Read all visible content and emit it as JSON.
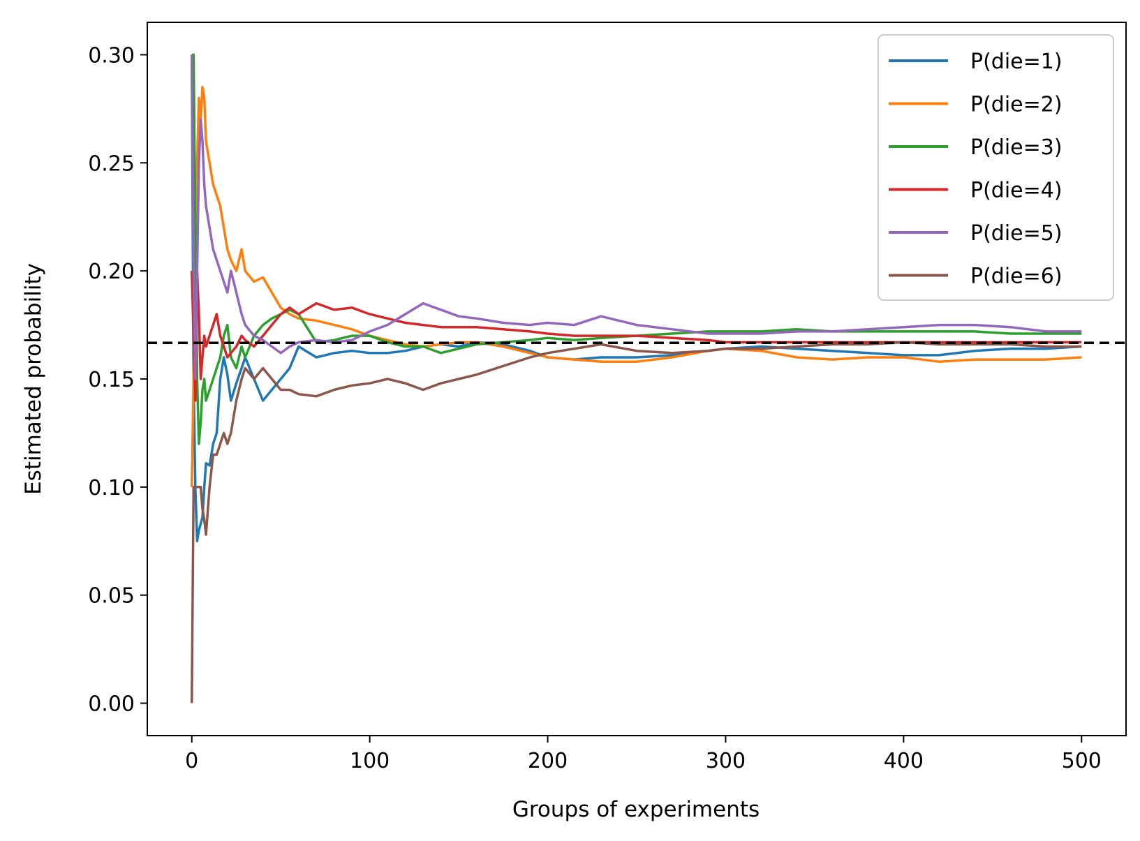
{
  "chart_data": {
    "type": "line",
    "title": "",
    "xlabel": "Groups of experiments",
    "ylabel": "Estimated probability",
    "xlim": [
      -25,
      525
    ],
    "ylim": [
      -0.015,
      0.315
    ],
    "xticks": [
      0,
      100,
      200,
      300,
      400,
      500
    ],
    "xtick_labels": [
      "0",
      "100",
      "200",
      "300",
      "400",
      "500"
    ],
    "yticks": [
      0.0,
      0.05,
      0.1,
      0.15,
      0.2,
      0.25,
      0.3
    ],
    "ytick_labels": [
      "0.00",
      "0.05",
      "0.10",
      "0.15",
      "0.20",
      "0.25",
      "0.30"
    ],
    "grid": false,
    "legend_position": "top-right",
    "reference_line": {
      "y": 0.1667,
      "style": "dashed",
      "color": "#000000"
    },
    "x": [
      0,
      1,
      2,
      3,
      4,
      5,
      6,
      7,
      8,
      10,
      12,
      14,
      16,
      18,
      20,
      22,
      25,
      28,
      30,
      35,
      40,
      45,
      50,
      55,
      60,
      70,
      80,
      90,
      100,
      110,
      120,
      130,
      140,
      150,
      160,
      175,
      190,
      200,
      215,
      230,
      250,
      270,
      290,
      300,
      320,
      340,
      360,
      380,
      400,
      420,
      440,
      460,
      480,
      500
    ],
    "series": [
      {
        "name": "P(die=1)",
        "color": "#1f77b4",
        "values": [
          0.3,
          0.15,
          0.1,
          0.075,
          0.08,
          0.083,
          0.086,
          0.1,
          0.111,
          0.11,
          0.12,
          0.125,
          0.15,
          0.16,
          0.152,
          0.14,
          0.148,
          0.155,
          0.16,
          0.15,
          0.14,
          0.145,
          0.15,
          0.155,
          0.165,
          0.16,
          0.162,
          0.163,
          0.162,
          0.162,
          0.163,
          0.165,
          0.166,
          0.165,
          0.167,
          0.166,
          0.163,
          0.16,
          0.159,
          0.16,
          0.16,
          0.161,
          0.163,
          0.164,
          0.165,
          0.164,
          0.163,
          0.162,
          0.161,
          0.161,
          0.163,
          0.164,
          0.164,
          0.165
        ]
      },
      {
        "name": "P(die=2)",
        "color": "#ff7f0e",
        "values": [
          0.1,
          0.15,
          0.2,
          0.25,
          0.28,
          0.27,
          0.285,
          0.28,
          0.26,
          0.25,
          0.24,
          0.235,
          0.23,
          0.22,
          0.21,
          0.205,
          0.2,
          0.21,
          0.2,
          0.195,
          0.197,
          0.19,
          0.183,
          0.18,
          0.178,
          0.177,
          0.175,
          0.173,
          0.17,
          0.168,
          0.166,
          0.165,
          0.166,
          0.167,
          0.167,
          0.165,
          0.162,
          0.16,
          0.159,
          0.158,
          0.158,
          0.16,
          0.163,
          0.164,
          0.163,
          0.16,
          0.159,
          0.16,
          0.16,
          0.158,
          0.159,
          0.159,
          0.159,
          0.16
        ]
      },
      {
        "name": "P(die=3)",
        "color": "#2ca02c",
        "values": [
          0.3,
          0.3,
          0.22,
          0.15,
          0.12,
          0.13,
          0.145,
          0.15,
          0.14,
          0.145,
          0.15,
          0.155,
          0.16,
          0.17,
          0.175,
          0.16,
          0.155,
          0.165,
          0.16,
          0.17,
          0.175,
          0.178,
          0.18,
          0.182,
          0.18,
          0.167,
          0.168,
          0.17,
          0.17,
          0.167,
          0.165,
          0.165,
          0.162,
          0.164,
          0.166,
          0.167,
          0.168,
          0.169,
          0.168,
          0.169,
          0.17,
          0.171,
          0.172,
          0.172,
          0.172,
          0.173,
          0.172,
          0.172,
          0.172,
          0.172,
          0.172,
          0.171,
          0.171,
          0.171
        ]
      },
      {
        "name": "P(die=4)",
        "color": "#d62728",
        "values": [
          0.2,
          0.17,
          0.14,
          0.2,
          0.18,
          0.15,
          0.16,
          0.17,
          0.165,
          0.17,
          0.175,
          0.18,
          0.17,
          0.165,
          0.16,
          0.162,
          0.165,
          0.17,
          0.168,
          0.165,
          0.17,
          0.175,
          0.18,
          0.183,
          0.18,
          0.185,
          0.182,
          0.183,
          0.18,
          0.178,
          0.176,
          0.175,
          0.174,
          0.174,
          0.174,
          0.173,
          0.172,
          0.171,
          0.17,
          0.17,
          0.17,
          0.169,
          0.168,
          0.167,
          0.167,
          0.167,
          0.167,
          0.167,
          0.167,
          0.167,
          0.167,
          0.167,
          0.167,
          0.167
        ]
      },
      {
        "name": "P(die=5)",
        "color": "#9467bd",
        "values": [
          0.3,
          0.2,
          0.15,
          0.2,
          0.25,
          0.27,
          0.26,
          0.24,
          0.23,
          0.22,
          0.21,
          0.205,
          0.2,
          0.195,
          0.19,
          0.2,
          0.19,
          0.18,
          0.175,
          0.17,
          0.168,
          0.165,
          0.162,
          0.165,
          0.167,
          0.168,
          0.167,
          0.168,
          0.172,
          0.175,
          0.18,
          0.185,
          0.182,
          0.179,
          0.178,
          0.176,
          0.175,
          0.176,
          0.175,
          0.179,
          0.175,
          0.173,
          0.171,
          0.171,
          0.171,
          0.172,
          0.172,
          0.173,
          0.174,
          0.175,
          0.175,
          0.174,
          0.172,
          0.172
        ]
      },
      {
        "name": "P(die=6)",
        "color": "#8c564b",
        "values": [
          0.0,
          0.1,
          0.1,
          0.1,
          0.1,
          0.1,
          0.09,
          0.085,
          0.078,
          0.1,
          0.115,
          0.115,
          0.12,
          0.125,
          0.12,
          0.125,
          0.14,
          0.15,
          0.155,
          0.15,
          0.155,
          0.15,
          0.145,
          0.145,
          0.143,
          0.142,
          0.145,
          0.147,
          0.148,
          0.15,
          0.148,
          0.145,
          0.148,
          0.15,
          0.152,
          0.156,
          0.16,
          0.162,
          0.164,
          0.166,
          0.163,
          0.162,
          0.163,
          0.164,
          0.164,
          0.165,
          0.166,
          0.166,
          0.167,
          0.166,
          0.166,
          0.166,
          0.165,
          0.165
        ]
      }
    ]
  }
}
